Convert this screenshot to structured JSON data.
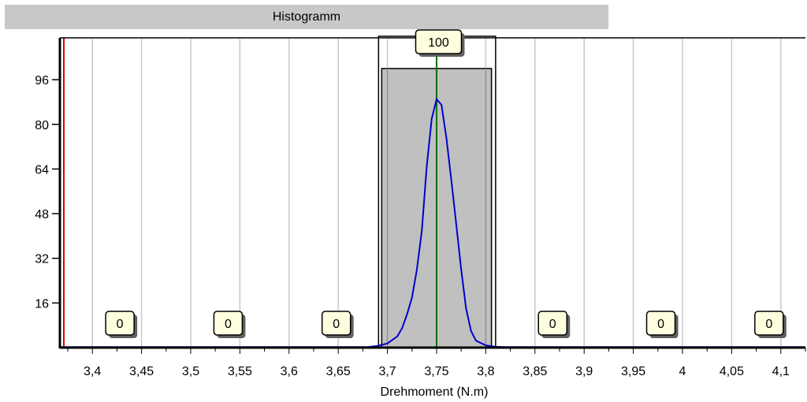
{
  "window_title": "Histogramm",
  "chart_data": {
    "type": "bar",
    "title": "Histogramm",
    "xlabel": "Drehmoment (N.m)",
    "ylabel": "",
    "xlim": [
      3.367,
      4.125
    ],
    "ylim": [
      0,
      111
    ],
    "xticks": [
      3.4,
      3.45,
      3.5,
      3.55,
      3.6,
      3.65,
      3.7,
      3.75,
      3.8,
      3.85,
      3.9,
      3.95,
      4,
      4.05,
      4.1
    ],
    "xtick_labels": [
      "3,4",
      "3,45",
      "3,5",
      "3,55",
      "3,6",
      "3,65",
      "3,7",
      "3,75",
      "3,8",
      "3,85",
      "3,9",
      "3,95",
      "4",
      "4,05",
      "4,1"
    ],
    "yticks": [
      16,
      32,
      48,
      64,
      80,
      96
    ],
    "yticks_labels": [
      "16",
      "32",
      "48",
      "64",
      "80",
      "96"
    ],
    "grid": true,
    "bars": [
      {
        "x0": 3.375,
        "x1": 3.485,
        "count": 0,
        "label": "0"
      },
      {
        "x0": 3.485,
        "x1": 3.595,
        "count": 0,
        "label": "0"
      },
      {
        "x0": 3.595,
        "x1": 3.695,
        "count": 0,
        "label": "0"
      },
      {
        "x0": 3.695,
        "x1": 3.805,
        "count": 100,
        "label": "100"
      },
      {
        "x0": 3.805,
        "x1": 3.915,
        "count": 0,
        "label": "0"
      },
      {
        "x0": 3.915,
        "x1": 4.025,
        "count": 0,
        "label": "0"
      },
      {
        "x0": 4.025,
        "x1": 4.125,
        "count": 0,
        "label": "0"
      }
    ],
    "bar_badge_centers": [
      3.428,
      3.538,
      3.648,
      3.752,
      3.868,
      3.978,
      4.088
    ],
    "spec_lines": [
      {
        "name": "lower",
        "x": 3.371,
        "color": "#e00000"
      },
      {
        "name": "mean",
        "x": 3.75,
        "color": "#007000"
      }
    ],
    "spec_box": {
      "x0": 3.691,
      "x1": 3.81
    },
    "curve": {
      "color": "#0000cc",
      "points": [
        [
          3.367,
          0.2
        ],
        [
          3.68,
          0.2
        ],
        [
          3.69,
          0.6
        ],
        [
          3.7,
          1.5
        ],
        [
          3.71,
          4
        ],
        [
          3.715,
          7
        ],
        [
          3.72,
          12
        ],
        [
          3.725,
          18
        ],
        [
          3.73,
          28
        ],
        [
          3.735,
          42
        ],
        [
          3.74,
          65
        ],
        [
          3.745,
          82
        ],
        [
          3.75,
          89
        ],
        [
          3.755,
          87
        ],
        [
          3.76,
          75
        ],
        [
          3.765,
          60
        ],
        [
          3.77,
          44
        ],
        [
          3.775,
          28
        ],
        [
          3.78,
          14
        ],
        [
          3.785,
          6
        ],
        [
          3.79,
          2.5
        ],
        [
          3.8,
          0.8
        ],
        [
          3.81,
          0.3
        ],
        [
          3.82,
          0.2
        ],
        [
          4.125,
          0.2
        ]
      ]
    },
    "colors": {
      "bar_fill": "#c0c0c0",
      "bar_stroke": "#000000",
      "badge_fill": "#ffffe0",
      "grid": "#c8c8c8"
    }
  }
}
